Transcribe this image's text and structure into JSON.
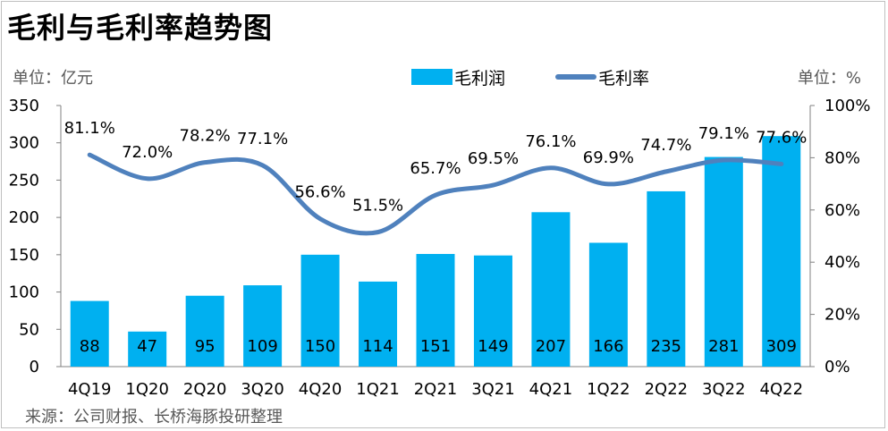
{
  "title": "毛利与毛利率趋势图",
  "unit_left": "单位：亿元",
  "unit_right": "单位：%",
  "source": "来源：公司财报、长桥海豚投研整理",
  "colors": {
    "bar": "#00b0f0",
    "line": "#4f81bd",
    "axis": "#808080"
  },
  "chart_data": {
    "type": "bar+line",
    "categories": [
      "4Q19",
      "1Q20",
      "2Q20",
      "3Q20",
      "4Q20",
      "1Q21",
      "2Q21",
      "3Q21",
      "4Q21",
      "1Q22",
      "2Q22",
      "3Q22",
      "4Q22"
    ],
    "series": [
      {
        "name": "毛利润",
        "type": "bar",
        "axis": "left",
        "values": [
          88,
          47,
          95,
          109,
          150,
          114,
          151,
          149,
          207,
          166,
          235,
          281,
          309
        ]
      },
      {
        "name": "毛利率",
        "type": "line",
        "axis": "right",
        "values": [
          81.1,
          72.0,
          78.2,
          77.1,
          56.6,
          51.5,
          65.7,
          69.5,
          76.1,
          69.9,
          74.7,
          79.1,
          77.6
        ],
        "labels": [
          "81.1%",
          "72.0%",
          "78.2%",
          "77.1%",
          "56.6%",
          "51.5%",
          "65.7%",
          "69.5%",
          "76.1%",
          "69.9%",
          "74.7%",
          "79.1%",
          "77.6%"
        ]
      }
    ],
    "y_left": {
      "ticks": [
        0,
        50,
        100,
        150,
        200,
        250,
        300,
        350
      ],
      "ylim": [
        0,
        350
      ]
    },
    "y_right": {
      "ticks": [
        0,
        20,
        40,
        60,
        80,
        100
      ],
      "tick_labels": [
        "0%",
        "20%",
        "40%",
        "60%",
        "80%",
        "100%"
      ],
      "ylim": [
        0,
        100
      ]
    },
    "grid": false,
    "legend": "top-center"
  }
}
